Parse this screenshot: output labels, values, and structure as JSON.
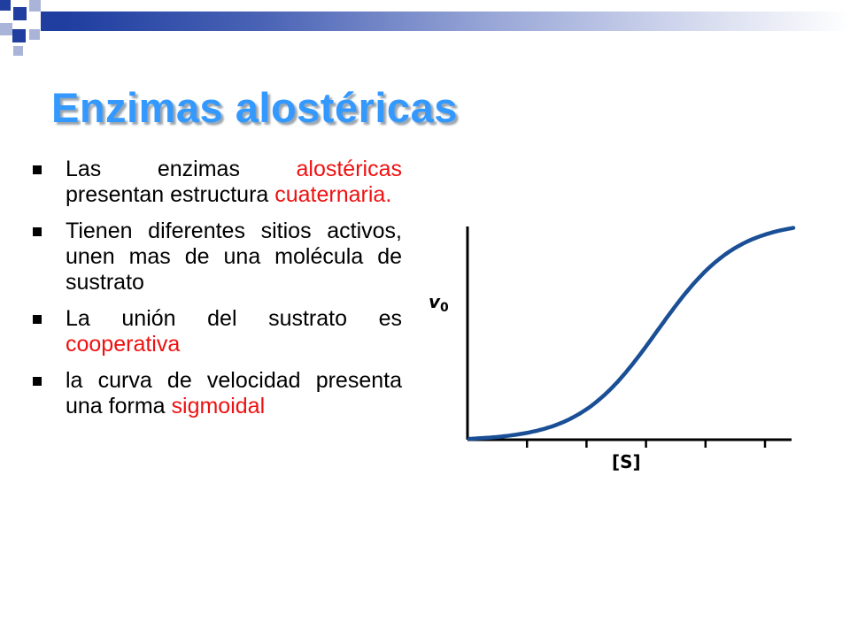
{
  "title": "Enzimas alostéricas",
  "bullets": [
    {
      "parts": [
        {
          "text": "Las enzimas ",
          "color": ""
        },
        {
          "text": "alostéricas",
          "color": "red"
        },
        {
          "text": " presentan estructura ",
          "color": ""
        },
        {
          "text": "cuaternaria.",
          "color": "red"
        }
      ]
    },
    {
      "parts": [
        {
          "text": "Tienen diferentes sitios activos, unen mas de una molécula de sustrato",
          "color": ""
        }
      ]
    },
    {
      "parts": [
        {
          "text": "La unión del sustrato es ",
          "color": ""
        },
        {
          "text": "cooperativa",
          "color": "red"
        }
      ]
    },
    {
      "parts": [
        {
          "text": "la curva de velocidad presenta una forma ",
          "color": ""
        },
        {
          "text": "sigmoidal",
          "color": "red"
        }
      ]
    }
  ],
  "colors": {
    "title": "#3399ff",
    "highlight": "#ee1111",
    "curve": "#1a4f96"
  },
  "chart_data": {
    "type": "line",
    "ylabel": "v",
    "ylabel_subscript": "0",
    "xlabel": "[S]",
    "ticks_count": 5,
    "curve_shape": "sigmoid",
    "grid": false
  }
}
